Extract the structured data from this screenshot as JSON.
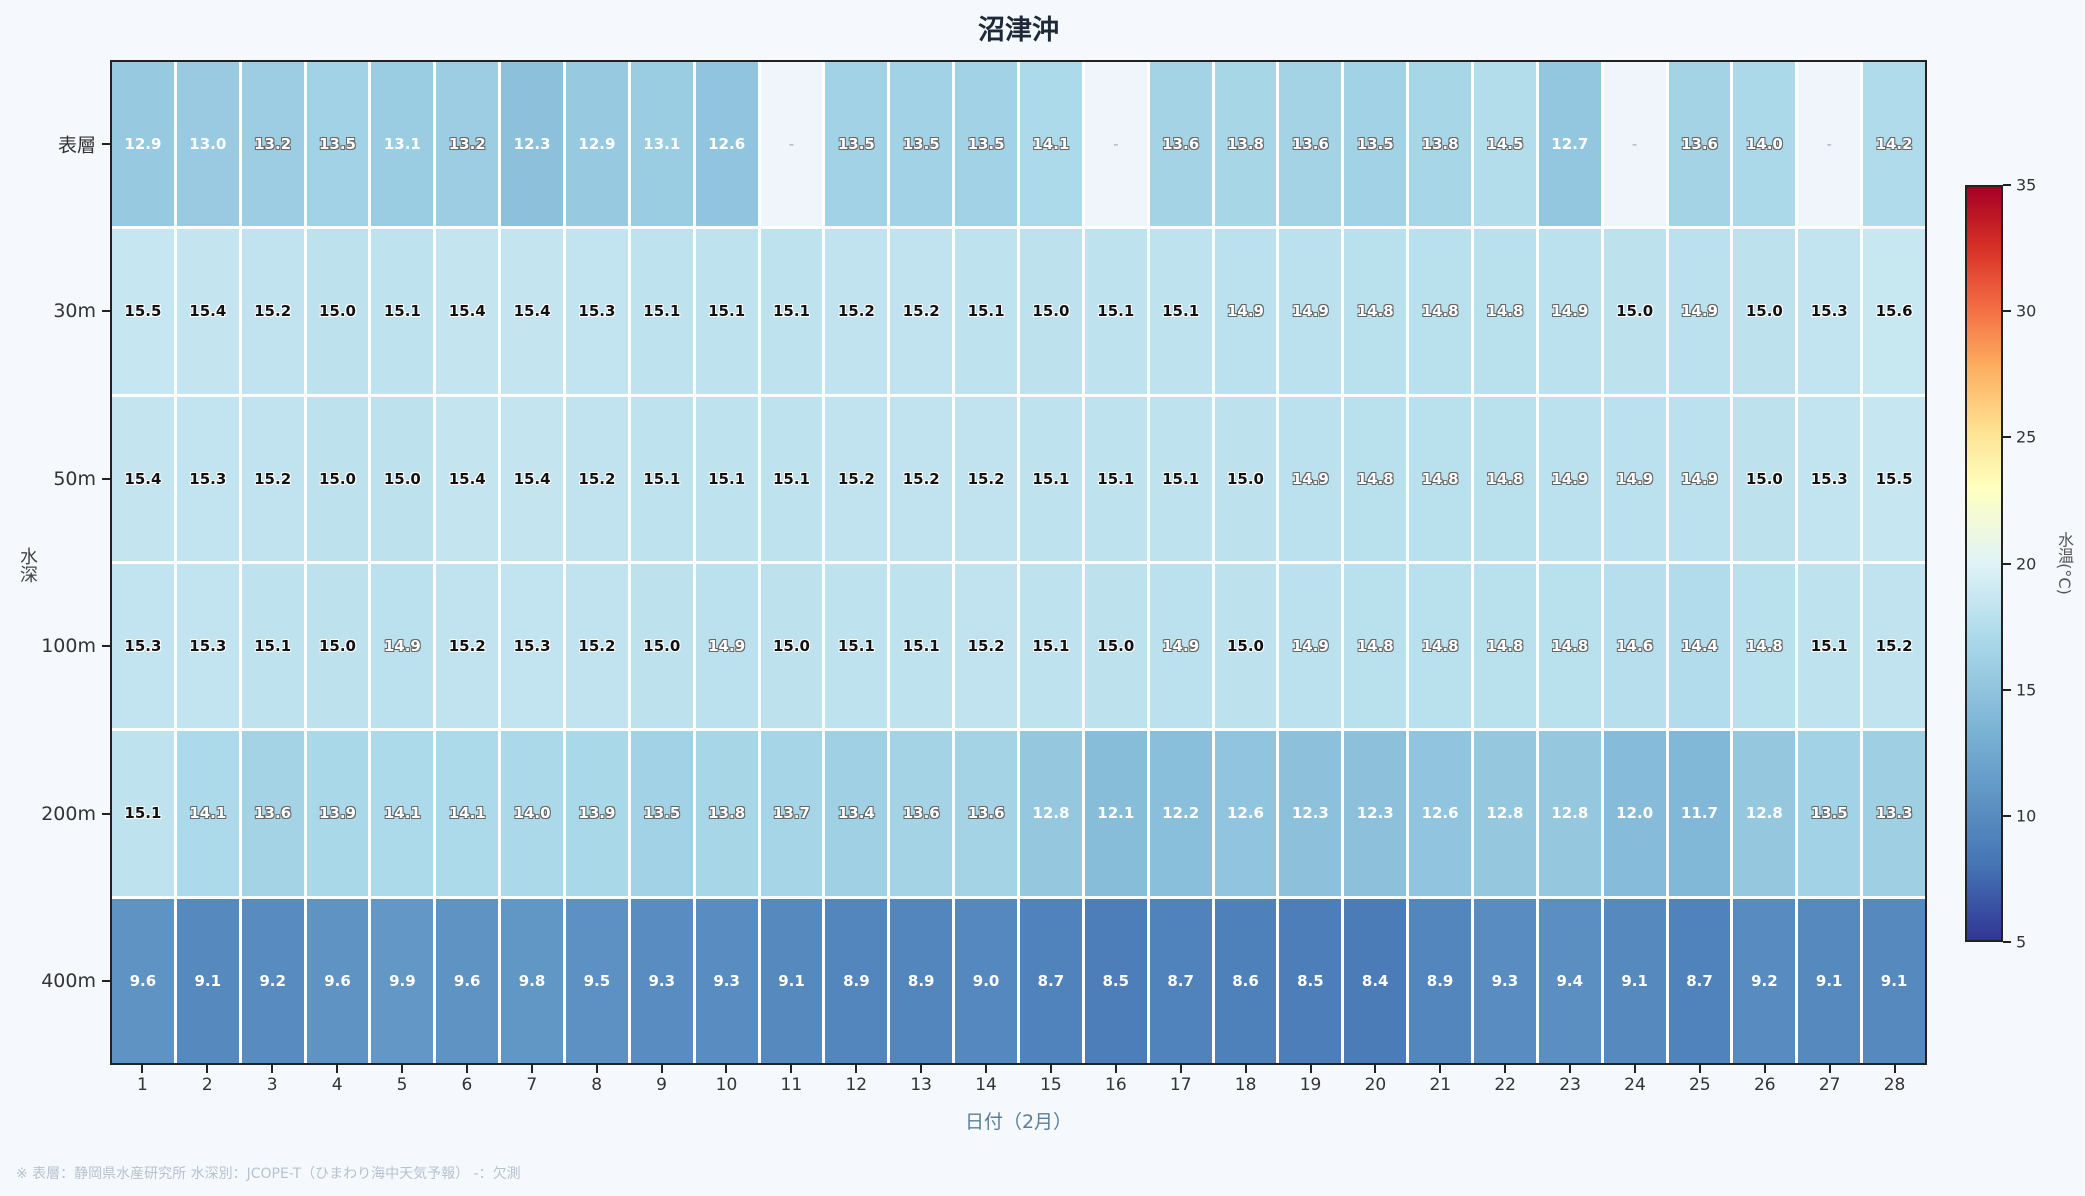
{
  "title": "沼津沖",
  "xaxis_title": "日付（2月）",
  "yaxis_title": "水深",
  "colorbar_title": "水温(°C)",
  "footnote": "※ 表層：静岡県水産研究所  水深別：JCOPE-T（ひまわり海中天気予報）  -：欠測",
  "missing_label": "-",
  "colors": {
    "background": "#f5f9fd",
    "title": "#1e2a3a",
    "xaxis_title": "#5a7e9c",
    "missing_cell": "#f0f5fc"
  },
  "chart_data": {
    "type": "heatmap",
    "title": "沼津沖",
    "xlabel": "日付（2月）",
    "ylabel": "水深",
    "colorbar_label": "水温(°C)",
    "colorbar_range": [
      5,
      35
    ],
    "colorbar_ticks": [
      5,
      10,
      15,
      20,
      25,
      30,
      35
    ],
    "colormap": "RdYlBu_r",
    "x": [
      1,
      2,
      3,
      4,
      5,
      6,
      7,
      8,
      9,
      10,
      11,
      12,
      13,
      14,
      15,
      16,
      17,
      18,
      19,
      20,
      21,
      22,
      23,
      24,
      25,
      26,
      27,
      28
    ],
    "y": [
      "表層",
      "30m",
      "50m",
      "100m",
      "200m",
      "400m"
    ],
    "values": [
      [
        12.9,
        13.0,
        13.2,
        13.5,
        13.1,
        13.2,
        12.3,
        12.9,
        13.1,
        12.6,
        null,
        13.5,
        13.5,
        13.5,
        14.1,
        null,
        13.6,
        13.8,
        13.6,
        13.5,
        13.8,
        14.5,
        12.7,
        null,
        13.6,
        14.0,
        null,
        14.2
      ],
      [
        15.5,
        15.4,
        15.2,
        15.0,
        15.1,
        15.4,
        15.4,
        15.3,
        15.1,
        15.1,
        15.1,
        15.2,
        15.2,
        15.1,
        15.0,
        15.1,
        15.1,
        14.9,
        14.9,
        14.8,
        14.8,
        14.8,
        14.9,
        15.0,
        14.9,
        15.0,
        15.3,
        15.6
      ],
      [
        15.4,
        15.3,
        15.2,
        15.0,
        15.0,
        15.4,
        15.4,
        15.2,
        15.1,
        15.1,
        15.1,
        15.2,
        15.2,
        15.2,
        15.1,
        15.1,
        15.1,
        15.0,
        14.9,
        14.8,
        14.8,
        14.8,
        14.9,
        14.9,
        14.9,
        15.0,
        15.3,
        15.5
      ],
      [
        15.3,
        15.3,
        15.1,
        15.0,
        14.9,
        15.2,
        15.3,
        15.2,
        15.0,
        14.9,
        15.0,
        15.1,
        15.1,
        15.2,
        15.1,
        15.0,
        14.9,
        15.0,
        14.9,
        14.8,
        14.8,
        14.8,
        14.8,
        14.6,
        14.4,
        14.8,
        15.1,
        15.2
      ],
      [
        15.1,
        14.1,
        13.6,
        13.9,
        14.1,
        14.1,
        14.0,
        13.9,
        13.5,
        13.8,
        13.7,
        13.4,
        13.6,
        13.6,
        12.8,
        12.1,
        12.2,
        12.6,
        12.3,
        12.3,
        12.6,
        12.8,
        12.8,
        12.0,
        11.7,
        12.8,
        13.5,
        13.3
      ],
      [
        9.6,
        9.1,
        9.2,
        9.6,
        9.9,
        9.6,
        9.8,
        9.5,
        9.3,
        9.3,
        9.1,
        8.9,
        8.9,
        9.0,
        8.7,
        8.5,
        8.7,
        8.6,
        8.5,
        8.4,
        8.9,
        9.3,
        9.4,
        9.1,
        8.7,
        9.2,
        9.1,
        9.1
      ]
    ]
  }
}
